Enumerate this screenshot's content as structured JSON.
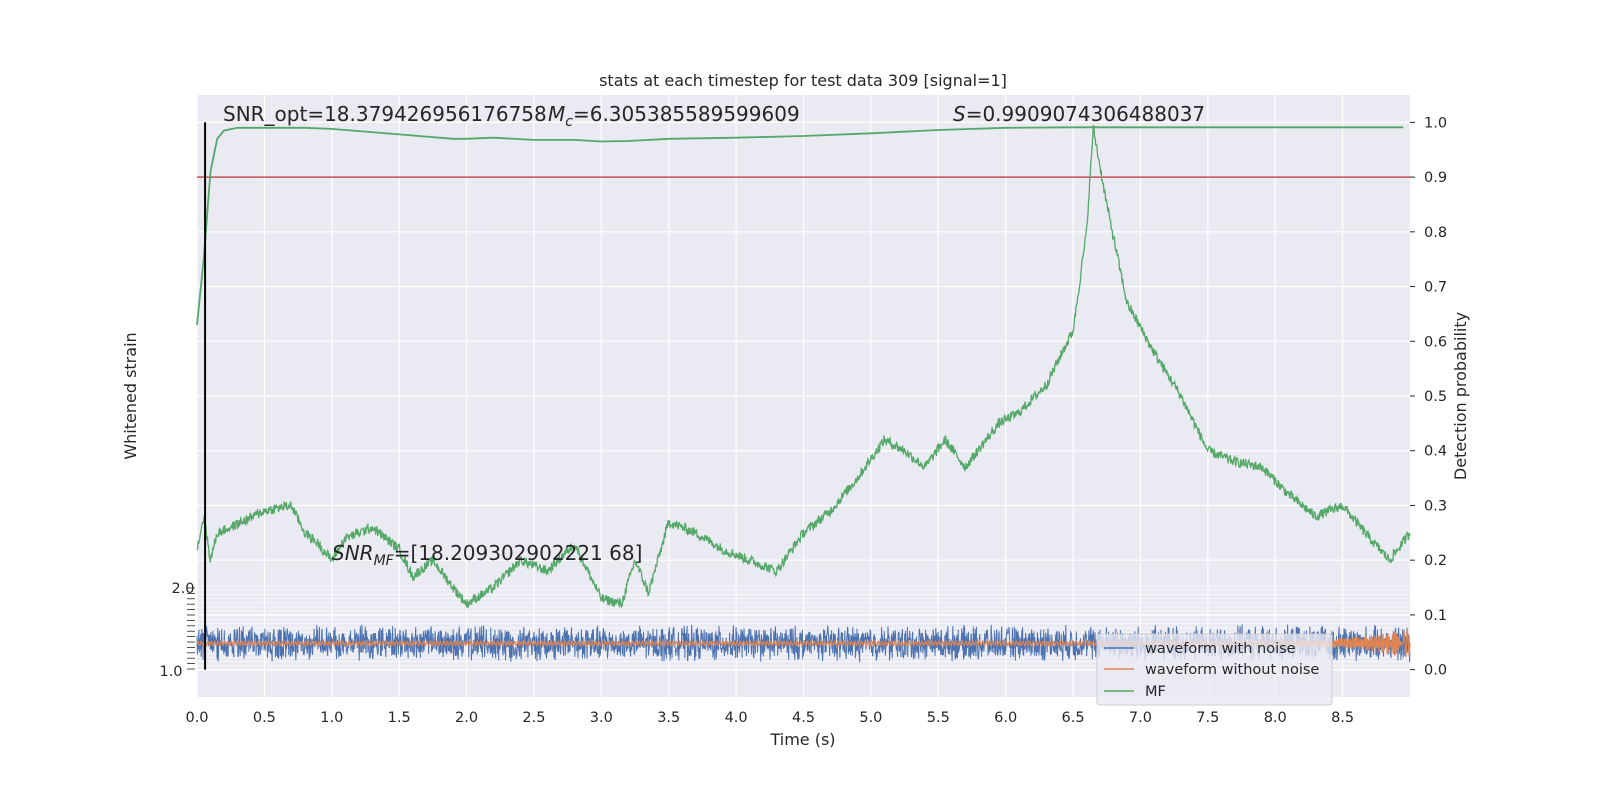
{
  "chart_data": {
    "type": "line",
    "title": "stats at each timestep for test data 309 [signal=1]",
    "xlabel": "Time (s)",
    "ylabel_left": "Whitened strain",
    "ylabel_right": "Detection probability",
    "xlim": [
      0.0,
      9.0
    ],
    "ylim_right": [
      -0.05,
      1.05
    ],
    "x_ticks": [
      "0.0",
      "0.5",
      "1.0",
      "1.5",
      "2.0",
      "2.5",
      "3.0",
      "3.5",
      "4.0",
      "4.5",
      "5.0",
      "5.5",
      "6.0",
      "6.5",
      "7.0",
      "7.5",
      "8.0",
      "8.5"
    ],
    "y_ticks_right": [
      "0.0",
      "0.1",
      "0.2",
      "0.3",
      "0.4",
      "0.5",
      "0.6",
      "0.7",
      "0.8",
      "0.9",
      "1.0"
    ],
    "y_ticks_left_top": "2.0",
    "y_ticks_left_bottom": "1.0",
    "threshold": 0.9,
    "vline_x": 0.06,
    "grid": true,
    "legend_position": "lower-right",
    "annotations": {
      "snr_opt": "SNR_opt=18.379426956176758",
      "mc_symbol": "M",
      "mc_sub": "c",
      "mc_value": "=6.305385589599609",
      "s_symbol": "S",
      "s_value": "=0.9909074306488037",
      "snrmf_symbol": "SNR",
      "snrmf_sub": "MF",
      "snrmf_value": "=[18.209302902221 68]"
    },
    "series": [
      {
        "name": "waveform with noise",
        "color": "#4c72b0",
        "axis": "left",
        "description_amplitude": "noise band between about 0.02 and 0.08 on right axis"
      },
      {
        "name": "waveform without noise",
        "color": "#dd8452",
        "axis": "left",
        "chirp_peak_time": 8.95
      },
      {
        "name": "MF",
        "color": "#55a868",
        "axis": "right",
        "x": [
          0.0,
          0.05,
          0.1,
          0.15,
          0.2,
          0.3,
          0.4,
          0.6,
          0.8,
          1.0,
          1.5,
          1.9,
          2.0,
          2.2,
          2.5,
          2.8,
          3.0,
          3.2,
          3.5,
          4.0,
          4.5,
          5.0,
          5.5,
          6.0,
          6.5,
          7.0,
          7.5,
          8.0,
          8.5,
          8.95
        ],
        "values": [
          0.63,
          0.75,
          0.91,
          0.97,
          0.985,
          0.99,
          0.99,
          0.99,
          0.99,
          0.988,
          0.978,
          0.97,
          0.97,
          0.972,
          0.968,
          0.968,
          0.965,
          0.966,
          0.97,
          0.972,
          0.975,
          0.98,
          0.986,
          0.99,
          0.991,
          0.991,
          0.991,
          0.991,
          0.991,
          0.991
        ]
      },
      {
        "name": "MF",
        "color": "#55a868",
        "axis": "right",
        "style": "noisy",
        "x": [
          0.0,
          0.05,
          0.1,
          0.15,
          0.25,
          0.5,
          0.7,
          0.8,
          0.9,
          1.0,
          1.1,
          1.3,
          1.5,
          1.6,
          1.75,
          1.9,
          2.0,
          2.2,
          2.4,
          2.6,
          2.8,
          3.0,
          3.15,
          3.25,
          3.35,
          3.5,
          3.7,
          3.9,
          4.1,
          4.3,
          4.5,
          4.7,
          4.9,
          5.1,
          5.25,
          5.4,
          5.55,
          5.7,
          5.95,
          6.1,
          6.3,
          6.5,
          6.6,
          6.65,
          6.75,
          6.9,
          7.1,
          7.3,
          7.5,
          7.7,
          7.9,
          8.1,
          8.3,
          8.5,
          8.7,
          8.85,
          9.0
        ],
        "values": [
          0.22,
          0.28,
          0.2,
          0.25,
          0.26,
          0.29,
          0.3,
          0.25,
          0.23,
          0.2,
          0.24,
          0.26,
          0.22,
          0.17,
          0.2,
          0.15,
          0.12,
          0.15,
          0.2,
          0.18,
          0.23,
          0.13,
          0.12,
          0.2,
          0.14,
          0.27,
          0.25,
          0.22,
          0.2,
          0.18,
          0.25,
          0.29,
          0.35,
          0.42,
          0.4,
          0.37,
          0.42,
          0.37,
          0.45,
          0.47,
          0.52,
          0.62,
          0.8,
          0.99,
          0.85,
          0.67,
          0.58,
          0.5,
          0.4,
          0.38,
          0.37,
          0.32,
          0.28,
          0.3,
          0.24,
          0.2,
          0.25
        ]
      }
    ]
  }
}
